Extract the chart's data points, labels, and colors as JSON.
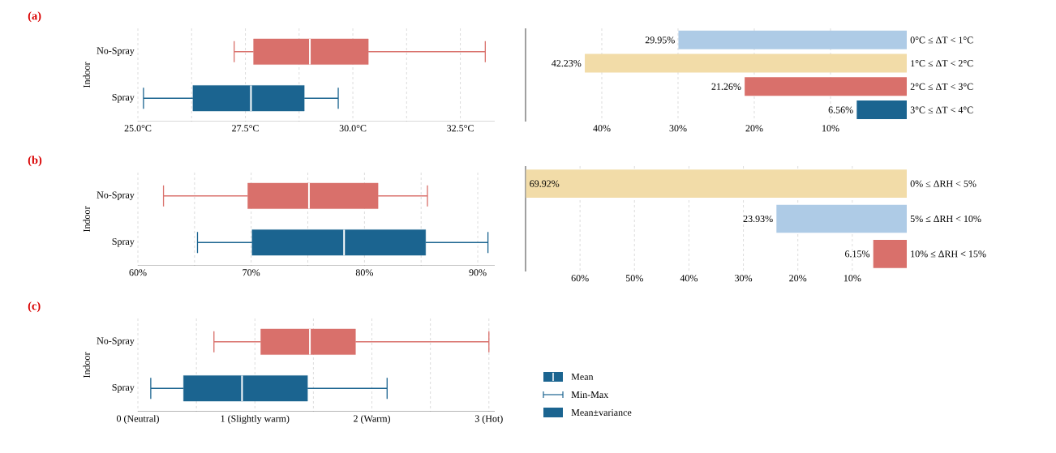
{
  "chart_data": [
    {
      "type": "box",
      "title": "(a)",
      "ylabel": "Indoor",
      "orientation": "horizontal",
      "grid": "x",
      "categories": [
        "No-Spray",
        "Spray"
      ],
      "colors": [
        "#d9706b",
        "#1b6490"
      ],
      "boxes": [
        {
          "low": 27.24,
          "q1": 27.69,
          "median": 29.0,
          "q3": 30.36,
          "high": 33.08
        },
        {
          "low": 25.13,
          "q1": 26.28,
          "median": 27.63,
          "q3": 28.87,
          "high": 29.66
        }
      ],
      "xlim": [
        25,
        33.3
      ],
      "xticks": [
        {
          "value": 25,
          "label": "25.0°C"
        },
        {
          "value": 26.25,
          "label": null
        },
        {
          "value": 27.5,
          "label": "27.5°C"
        },
        {
          "value": 28.75,
          "label": null
        },
        {
          "value": 30,
          "label": "30.0°C"
        },
        {
          "value": 31.25,
          "label": null
        },
        {
          "value": 32.5,
          "label": "32.5°C"
        }
      ]
    },
    {
      "type": "bar",
      "orientation": "horizontal",
      "grid": "x",
      "categories": [
        "0°C ≤ ΔT < 1°C",
        "1°C ≤ ΔT < 2°C",
        "2°C ≤ ΔT < 3°C",
        "3°C ≤ ΔT < 4°C"
      ],
      "values": [
        29.95,
        42.23,
        21.26,
        6.56
      ],
      "colors": [
        "#aecbe6",
        "#f2dca8",
        "#d9706b",
        "#1b6490"
      ],
      "value_labels": [
        "29.95%",
        "42.23%",
        "21.26%",
        "6.56%"
      ],
      "xlim": [
        50,
        0
      ],
      "xticks": [
        {
          "value": 40,
          "label": "40%"
        },
        {
          "value": 30,
          "label": "30%"
        },
        {
          "value": 20,
          "label": "20%"
        },
        {
          "value": 10,
          "label": "10%"
        }
      ]
    },
    {
      "type": "box",
      "title": "(b)",
      "ylabel": "Indoor",
      "orientation": "horizontal",
      "grid": "x",
      "categories": [
        "No-Spray",
        "Spray"
      ],
      "colors": [
        "#d9706b",
        "#1b6490"
      ],
      "boxes": [
        {
          "low": 62.26,
          "q1": 69.7,
          "median": 75.1,
          "q3": 81.2,
          "high": 85.56
        },
        {
          "low": 65.26,
          "q1": 70.08,
          "median": 78.2,
          "q3": 85.4,
          "high": 90.9
        }
      ],
      "xlim": [
        60,
        91.5
      ],
      "xticks": [
        {
          "value": 60,
          "label": "60%"
        },
        {
          "value": 65,
          "label": null
        },
        {
          "value": 70,
          "label": "70%"
        },
        {
          "value": 75,
          "label": null
        },
        {
          "value": 80,
          "label": "80%"
        },
        {
          "value": 85,
          "label": null
        },
        {
          "value": 90,
          "label": "90%"
        }
      ]
    },
    {
      "type": "bar",
      "orientation": "horizontal",
      "grid": "x",
      "categories": [
        "0% ≤ ΔRH < 5%",
        "5% ≤ ΔRH < 10%",
        "10% ≤ ΔRH < 15%"
      ],
      "values": [
        69.92,
        23.93,
        6.15
      ],
      "colors": [
        "#f2dca8",
        "#aecbe6",
        "#d9706b"
      ],
      "value_labels": [
        "69.92%",
        "23.93%",
        "6.15%"
      ],
      "xlim": [
        70,
        0
      ],
      "xticks": [
        {
          "value": 60,
          "label": "60%"
        },
        {
          "value": 50,
          "label": "50%"
        },
        {
          "value": 40,
          "label": "40%"
        },
        {
          "value": 30,
          "label": "30%"
        },
        {
          "value": 20,
          "label": "20%"
        },
        {
          "value": 10,
          "label": "10%"
        }
      ]
    },
    {
      "type": "box",
      "title": "(c)",
      "ylabel": "Indoor",
      "orientation": "horizontal",
      "grid": "x",
      "categories": [
        "No-Spray",
        "Spray"
      ],
      "colors": [
        "#d9706b",
        "#1b6490"
      ],
      "boxes": [
        {
          "low": 0.65,
          "q1": 1.05,
          "median": 1.47,
          "q3": 1.86,
          "high": 3.0
        },
        {
          "low": 0.11,
          "q1": 0.39,
          "median": 0.89,
          "q3": 1.45,
          "high": 2.13
        }
      ],
      "xlim": [
        0,
        3.05
      ],
      "xticks": [
        {
          "value": 0,
          "label": "0 (Neutral)"
        },
        {
          "value": 0.5,
          "label": null
        },
        {
          "value": 1,
          "label": "1 (Slightly warm)"
        },
        {
          "value": 1.5,
          "label": null
        },
        {
          "value": 2,
          "label": "2 (Warm)"
        },
        {
          "value": 2.5,
          "label": null
        },
        {
          "value": 3,
          "label": "3 (Hot)"
        }
      ]
    },
    {
      "type": "other",
      "annotations": [
        "Mean",
        "Min-Max",
        "Mean±variance"
      ]
    }
  ]
}
